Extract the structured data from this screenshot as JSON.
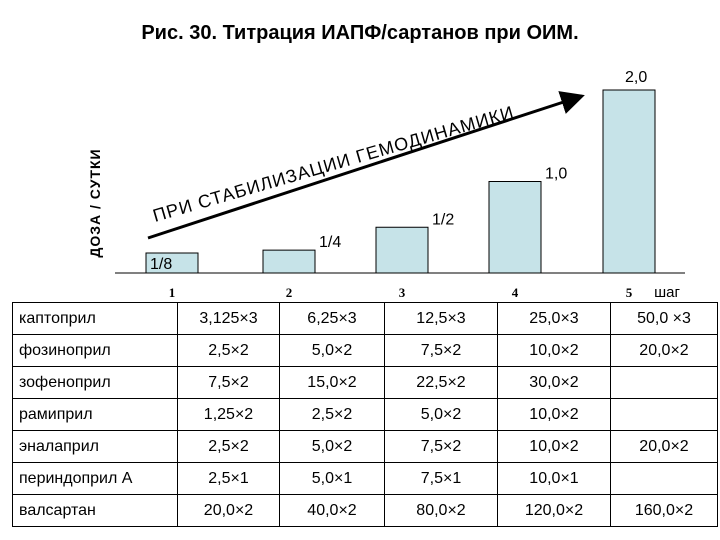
{
  "title": "Рис. 30. Титрация ИАПФ/сартанов при ОИМ.",
  "chart_data": {
    "type": "bar",
    "ylabel": "ДОЗА / СУТКИ",
    "xlabel": "шаг",
    "categories": [
      "1",
      "2",
      "3",
      "4",
      "5"
    ],
    "values": [
      0.125,
      0.25,
      0.5,
      1.0,
      2.0
    ],
    "bar_labels": [
      "1/8",
      "1/4",
      "1/2",
      "1,0",
      "2,0"
    ],
    "bar_color": "#c6e3e8",
    "arrow_text": "ПРИ СТАБИЛИЗАЦИИ ГЕМОДИНАМИКИ"
  },
  "table": {
    "rows": [
      {
        "drug": "каптоприл",
        "doses": [
          "3,125×3",
          "6,25×3",
          "12,5×3",
          "25,0×3",
          "50,0 ×3"
        ]
      },
      {
        "drug": "фозиноприл",
        "doses": [
          "2,5×2",
          "5,0×2",
          "7,5×2",
          "10,0×2",
          "20,0×2"
        ]
      },
      {
        "drug": "зофеноприл",
        "doses": [
          "7,5×2",
          "15,0×2",
          "22,5×2",
          "30,0×2",
          ""
        ]
      },
      {
        "drug": "рамиприл",
        "doses": [
          "1,25×2",
          "2,5×2",
          "5,0×2",
          "10,0×2",
          ""
        ]
      },
      {
        "drug": "эналаприл",
        "doses": [
          "2,5×2",
          "5,0×2",
          "7,5×2",
          "10,0×2",
          "20,0×2"
        ]
      },
      {
        "drug": "периндоприл А",
        "doses": [
          "2,5×1",
          "5,0×1",
          "7,5×1",
          "10,0×1",
          ""
        ]
      },
      {
        "drug": "валсартан",
        "doses": [
          "20,0×2",
          "40,0×2",
          "80,0×2",
          "120,0×2",
          "160,0×2"
        ]
      }
    ]
  }
}
